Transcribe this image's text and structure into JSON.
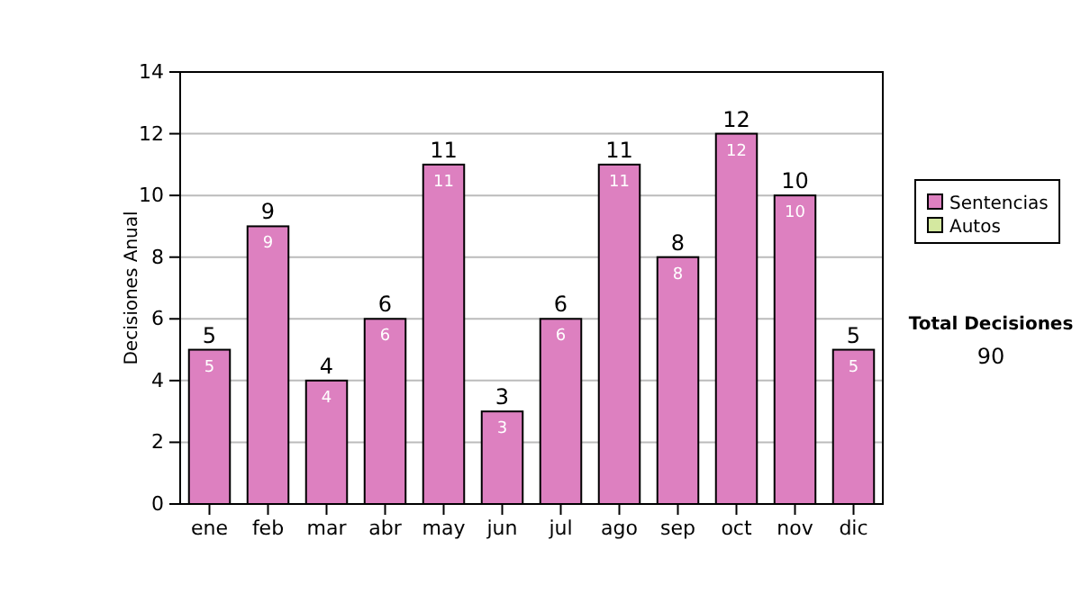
{
  "chart_data": {
    "type": "bar",
    "stacked": true,
    "ylabel": "Decisiones Anual",
    "categories": [
      "ene",
      "feb",
      "mar",
      "abr",
      "may",
      "jun",
      "jul",
      "ago",
      "sep",
      "oct",
      "nov",
      "dic"
    ],
    "series": [
      {
        "name": "Sentencias",
        "color": "#dd80c0",
        "values": [
          5,
          9,
          4,
          6,
          11,
          3,
          6,
          11,
          8,
          12,
          10,
          5
        ],
        "value_labels": [
          "5",
          "9",
          "4",
          "6",
          "11",
          "3",
          "6",
          "11",
          "8",
          "12",
          "10",
          "5"
        ]
      },
      {
        "name": "Autos",
        "color": "#d4e8a0",
        "values": [
          0,
          0,
          0,
          0,
          0,
          0,
          0,
          0,
          0,
          0,
          0,
          0
        ]
      }
    ],
    "totals": [
      "5",
      "9",
      "4",
      "6",
      "11",
      "3",
      "6",
      "11",
      "8",
      "12",
      "10",
      "5"
    ],
    "ylim": [
      0,
      14
    ],
    "yticks": [
      0,
      2,
      4,
      6,
      8,
      10,
      12,
      14
    ],
    "grid": "y",
    "legend": "right",
    "annotations": [
      "Total Decisiones",
      "90"
    ]
  }
}
